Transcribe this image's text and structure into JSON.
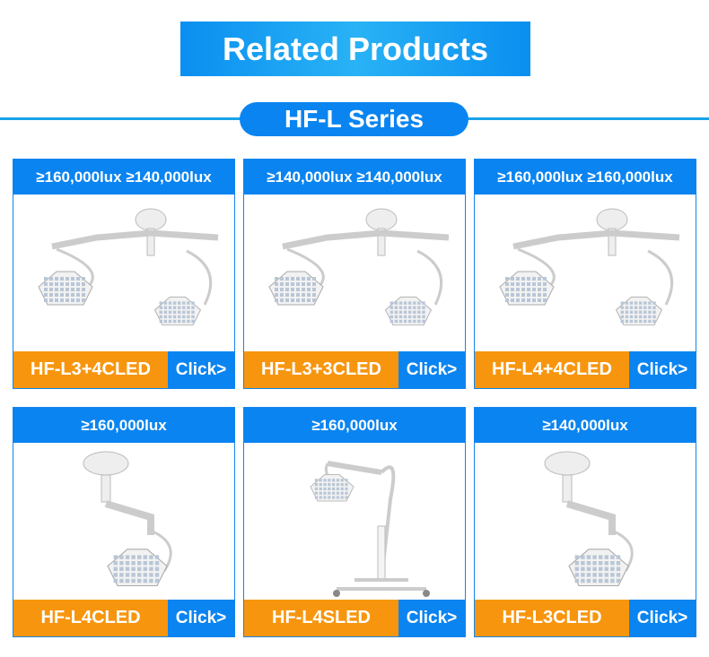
{
  "title": "Related Products",
  "series": "HF-L Series",
  "products": [
    {
      "lux": "≥160,000lux ≥140,000lux",
      "name": "HF-L3+4CLED",
      "click": "Click>",
      "type": "double"
    },
    {
      "lux": "≥140,000lux ≥140,000lux",
      "name": "HF-L3+3CLED",
      "click": "Click>",
      "type": "double"
    },
    {
      "lux": "≥160,000lux ≥160,000lux",
      "name": "HF-L4+4CLED",
      "click": "Click>",
      "type": "double"
    },
    {
      "lux": "≥160,000lux",
      "name": "HF-L4CLED",
      "click": "Click>",
      "type": "single"
    },
    {
      "lux": "≥160,000lux",
      "name": "HF-L4SLED",
      "click": "Click>",
      "type": "stand"
    },
    {
      "lux": "≥140,000lux",
      "name": "HF-L3CLED",
      "click": "Click>",
      "type": "single"
    }
  ],
  "colors": {
    "blue": "#0a84f0",
    "orange": "#f7960e",
    "line": "#1aa3e8"
  }
}
